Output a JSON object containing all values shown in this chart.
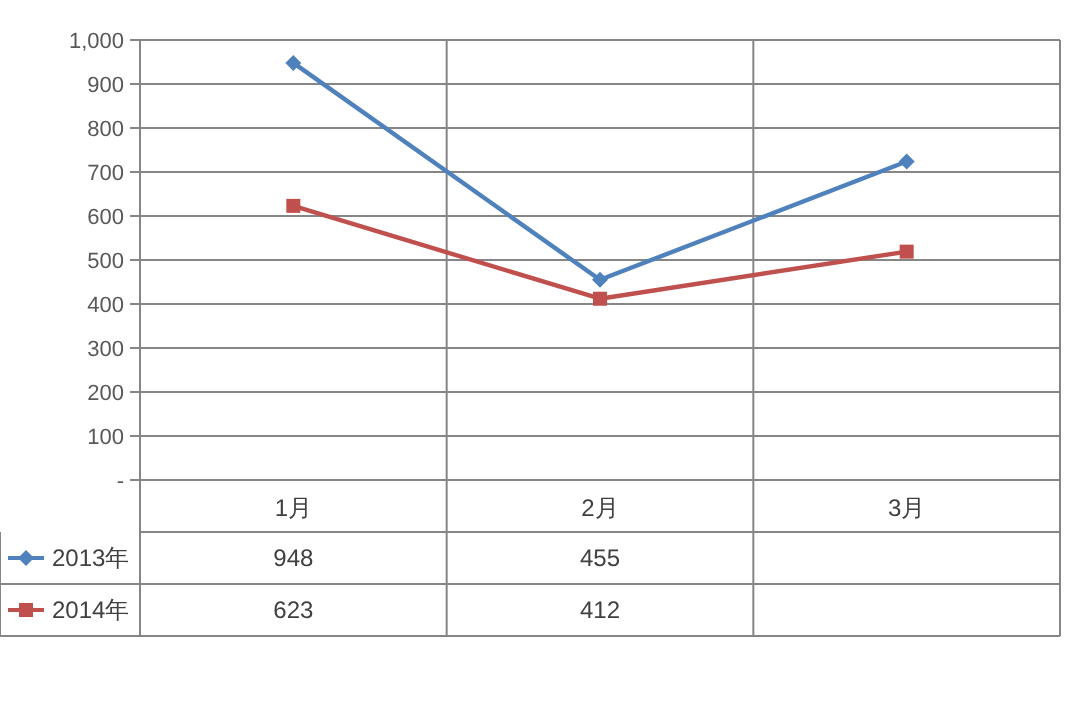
{
  "chart_data": {
    "type": "line",
    "categories": [
      "1月",
      "2月",
      "3月"
    ],
    "series": [
      {
        "name": "2013年",
        "color": "#4f81bd",
        "marker": "diamond",
        "values": [
          948,
          455,
          724
        ],
        "value_labels": [
          "948",
          "455",
          null
        ]
      },
      {
        "name": "2014年",
        "color": "#c0504d",
        "marker": "square",
        "values": [
          623,
          412,
          519
        ],
        "value_labels": [
          "623",
          "412",
          null
        ]
      }
    ],
    "ylim": [
      0,
      1000
    ],
    "yticks": [
      {
        "value": 0,
        "label": "-"
      },
      100,
      200,
      300,
      400,
      500,
      600,
      700,
      800,
      900,
      {
        "value": 1000,
        "label": "1,000"
      }
    ],
    "grid": "y",
    "legend": "left"
  }
}
